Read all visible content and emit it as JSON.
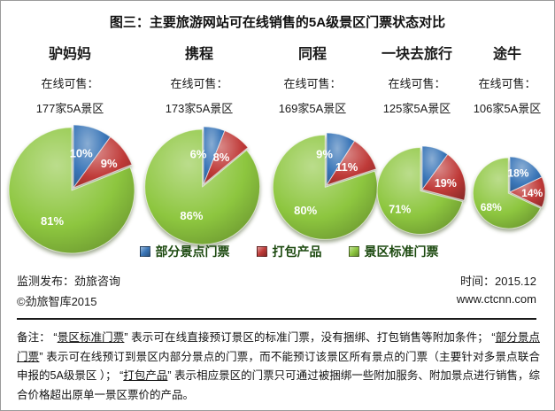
{
  "title": "图三：主要旅游网站可在线销售的5A级景区门票状态对比",
  "colors": {
    "blue": "#3a76b8",
    "red": "#bf3a38",
    "green": "#8dc63f",
    "legend_text": "#1d4a10"
  },
  "legend": {
    "items": [
      {
        "label": "部分景点门票",
        "color": "blue"
      },
      {
        "label": "打包产品",
        "color": "red"
      },
      {
        "label": "景区标准门票",
        "color": "green"
      }
    ]
  },
  "chart_data": {
    "type": "pie",
    "title": "图三：主要旅游网站可在线销售的5A级景区门票状态对比",
    "legend": [
      "部分景点门票",
      "打包产品",
      "景区标准门票"
    ],
    "legend_position": "bottom",
    "charts": [
      {
        "name": "驴妈妈",
        "subtitle": "在线可售：",
        "count": "177家5A景区",
        "count_value": 177,
        "slices": [
          {
            "label": "部分景点门票",
            "pct": 10,
            "text": "10%",
            "color": "blue"
          },
          {
            "label": "打包产品",
            "pct": 9,
            "text": "9%",
            "color": "red"
          },
          {
            "label": "景区标准门票",
            "pct": 81,
            "text": "81%",
            "color": "green"
          }
        ]
      },
      {
        "name": "携程",
        "subtitle": "在线可售：",
        "count": "173家5A景区",
        "count_value": 173,
        "slices": [
          {
            "label": "部分景点门票",
            "pct": 6,
            "text": "6%",
            "color": "blue"
          },
          {
            "label": "打包产品",
            "pct": 8,
            "text": "8%",
            "color": "red"
          },
          {
            "label": "景区标准门票",
            "pct": 86,
            "text": "86%",
            "color": "green"
          }
        ]
      },
      {
        "name": "同程",
        "subtitle": "在线可售：",
        "count": "169家5A景区",
        "count_value": 169,
        "slices": [
          {
            "label": "部分景点门票",
            "pct": 9,
            "text": "9%",
            "color": "blue"
          },
          {
            "label": "打包产品",
            "pct": 11,
            "text": "11%",
            "color": "red"
          },
          {
            "label": "景区标准门票",
            "pct": 80,
            "text": "80%",
            "color": "green"
          }
        ]
      },
      {
        "name": "一块去旅行",
        "subtitle": "在线可售：",
        "count": "125家5A景区",
        "count_value": 125,
        "slices": [
          {
            "label": "部分景点门票",
            "pct": 10,
            "text": "",
            "color": "blue"
          },
          {
            "label": "打包产品",
            "pct": 19,
            "text": "19%",
            "color": "red"
          },
          {
            "label": "景区标准门票",
            "pct": 71,
            "text": "71%",
            "color": "green"
          }
        ]
      },
      {
        "name": "途牛",
        "subtitle": "在线可售：",
        "count": "106家5A景区",
        "count_value": 106,
        "slices": [
          {
            "label": "部分景点门票",
            "pct": 18,
            "text": "18%",
            "color": "blue"
          },
          {
            "label": "打包产品",
            "pct": 14,
            "text": "14%",
            "color": "red"
          },
          {
            "label": "景区标准门票",
            "pct": 68,
            "text": "68%",
            "color": "green"
          }
        ]
      }
    ]
  },
  "footer": {
    "left_line1": "监测发布：劲旅咨询",
    "left_line2": "©劲旅智库2015",
    "right_line1": "时间：2015.12",
    "right_line2": "www.ctcnn.com"
  },
  "note": {
    "segments": [
      {
        "t": "备注： “"
      },
      {
        "t": "景区标准门票",
        "u": true
      },
      {
        "t": "” 表示可在线直接预订景区的标准门票，没有捆绑、打包销售等附加条件； “"
      },
      {
        "t": "部分景点门票",
        "u": true
      },
      {
        "t": "” 表示可在线预订到景区内部分景点的门票，而不能预订该景区所有景点的门票（主要针对多景点联合申报的5A级景区 ）； “"
      },
      {
        "t": "打包产品",
        "u": true
      },
      {
        "t": "” 表示相应景区的门票只可通过被捆绑一些附加服务、附加景点进行销售，综合价格超出原单一景区票价的产品。"
      }
    ]
  }
}
